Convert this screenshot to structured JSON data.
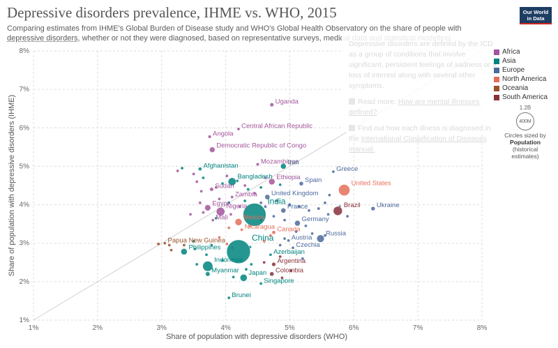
{
  "header": {
    "title": "Depressive disorders prevalence, IHME vs. WHO, 2015",
    "subtitle_before": "Comparing estimates from IHME's Global Burden of Disease study and WHO's Global Health Observatory on the share of people with ",
    "subtitle_link": "depressive disorders",
    "subtitle_after": ", whether or not they were diagnosed, based on representative surveys, medical data and statistical modelling.",
    "logo_line1": "Our World",
    "logo_line2": "in Data"
  },
  "tooltip": {
    "text": "Depressive disorders are defined by the ICD as a group of conditions that involve significant, persistent feelings of sadness or a loss of interest along with several other symptoms.",
    "read_more_label": "Read more: ",
    "read_more_link": "How are mental illnesses defined?",
    "find_out_text": "Find out how each illness is diagnosed in the ",
    "find_out_link": "International Classification of Diseases manual."
  },
  "legend": {
    "items": [
      {
        "label": "Africa",
        "color": "#a2559c"
      },
      {
        "label": "Asia",
        "color": "#00847e"
      },
      {
        "label": "Europe",
        "color": "#4c6a9c"
      },
      {
        "label": "North America",
        "color": "#e56e5a"
      },
      {
        "label": "Oceania",
        "color": "#9a5129"
      },
      {
        "label": "South America",
        "color": "#883039"
      }
    ],
    "size": {
      "top_label": "1.2B",
      "circle_label": "400M",
      "caption_line1": "Circles sized by",
      "caption_bold": "Population",
      "caption_line2": "(historical",
      "caption_line3": "estimates)"
    }
  },
  "chart_data": {
    "type": "scatter",
    "title": "Depressive disorders prevalence, IHME vs. WHO, 2015",
    "xlabel": "Share of population with depressive disorders (WHO)",
    "ylabel": "Share of population with depressive disorders (IHME)",
    "xlim": [
      1,
      8
    ],
    "ylim": [
      1,
      8
    ],
    "xticks": [
      "1%",
      "2%",
      "3%",
      "4%",
      "5%",
      "6%",
      "7%",
      "8%"
    ],
    "yticks": [
      "1%",
      "2%",
      "3%",
      "4%",
      "5%",
      "6%",
      "7%",
      "8%"
    ],
    "grid": true,
    "diagonal_reference": true,
    "legend_position": "right",
    "region_colors": {
      "Africa": "#a2559c",
      "Asia": "#00847e",
      "Europe": "#4c6a9c",
      "North America": "#e56e5a",
      "Oceania": "#9a5129",
      "South America": "#883039"
    },
    "labeled_points": [
      {
        "name": "Uganda",
        "region": "Africa",
        "x": 4.72,
        "y": 6.6,
        "pop_m": 40
      },
      {
        "name": "Central African Republic",
        "region": "Africa",
        "x": 4.2,
        "y": 5.97,
        "pop_m": 5
      },
      {
        "name": "Angola",
        "region": "Africa",
        "x": 3.75,
        "y": 5.77,
        "pop_m": 28
      },
      {
        "name": "Democratic Republic of Congo",
        "region": "Africa",
        "x": 3.79,
        "y": 5.43,
        "pop_m": 77
      },
      {
        "name": "Afghanistan",
        "region": "Asia",
        "x": 3.6,
        "y": 4.93,
        "pop_m": 34
      },
      {
        "name": "Mozambique",
        "region": "Africa",
        "x": 4.5,
        "y": 5.05,
        "pop_m": 28
      },
      {
        "name": "Iran",
        "region": "Asia",
        "x": 4.9,
        "y": 5.0,
        "pop_m": 79
      },
      {
        "name": "Greece",
        "region": "Europe",
        "x": 5.68,
        "y": 4.86,
        "pop_m": 11
      },
      {
        "name": "Bangladesh",
        "region": "Asia",
        "x": 4.1,
        "y": 4.6,
        "pop_m": 157
      },
      {
        "name": "Ethiopia",
        "region": "Africa",
        "x": 4.72,
        "y": 4.6,
        "pop_m": 100
      },
      {
        "name": "Spain",
        "region": "Europe",
        "x": 5.18,
        "y": 4.55,
        "pop_m": 46
      },
      {
        "name": "Sudan",
        "region": "Africa",
        "x": 3.78,
        "y": 4.4,
        "pop_m": 39
      },
      {
        "name": "United States",
        "region": "North America",
        "x": 5.85,
        "y": 4.38,
        "pop_m": 320
      },
      {
        "name": "Zambia",
        "region": "Africa",
        "x": 4.1,
        "y": 4.2,
        "pop_m": 16
      },
      {
        "name": "United Kingdom",
        "region": "Europe",
        "x": 4.65,
        "y": 4.2,
        "pop_m": 65
      },
      {
        "name": "Egypt",
        "region": "Africa",
        "x": 3.72,
        "y": 3.92,
        "pop_m": 93
      },
      {
        "name": "Nigeria",
        "region": "Africa",
        "x": 3.92,
        "y": 3.82,
        "pop_m": 182
      },
      {
        "name": "India",
        "region": "Asia",
        "x": 4.45,
        "y": 3.74,
        "pop_m": 1310
      },
      {
        "name": "France",
        "region": "Europe",
        "x": 4.9,
        "y": 3.85,
        "pop_m": 64
      },
      {
        "name": "Brazil",
        "region": "South America",
        "x": 5.75,
        "y": 3.84,
        "pop_m": 205
      },
      {
        "name": "Ukraine",
        "region": "Europe",
        "x": 6.3,
        "y": 3.9,
        "pop_m": 45
      },
      {
        "name": "Mali",
        "region": "Africa",
        "x": 3.8,
        "y": 3.6,
        "pop_m": 18
      },
      {
        "name": "Mexico",
        "region": "North America",
        "x": 4.2,
        "y": 3.55,
        "pop_m": 125
      },
      {
        "name": "Germany",
        "region": "Europe",
        "x": 5.12,
        "y": 3.52,
        "pop_m": 81
      },
      {
        "name": "Nicaragua",
        "region": "North America",
        "x": 4.25,
        "y": 3.35,
        "pop_m": 6
      },
      {
        "name": "Canada",
        "region": "North America",
        "x": 4.75,
        "y": 3.28,
        "pop_m": 36
      },
      {
        "name": "Russia",
        "region": "Europe",
        "x": 5.48,
        "y": 3.12,
        "pop_m": 144
      },
      {
        "name": "Papua New Guinea",
        "region": "Oceania",
        "x": 3.05,
        "y": 3.0,
        "pop_m": 8
      },
      {
        "name": "Austria",
        "region": "Europe",
        "x": 4.98,
        "y": 3.07,
        "pop_m": 9
      },
      {
        "name": "China",
        "region": "Asia",
        "x": 4.2,
        "y": 2.78,
        "pop_m": 1400
      },
      {
        "name": "Czechia",
        "region": "Europe",
        "x": 5.05,
        "y": 2.88,
        "pop_m": 11
      },
      {
        "name": "Philippines",
        "region": "Asia",
        "x": 3.35,
        "y": 2.78,
        "pop_m": 102
      },
      {
        "name": "Azerbaijan",
        "region": "Asia",
        "x": 4.7,
        "y": 2.7,
        "pop_m": 10
      },
      {
        "name": "Indonesia",
        "region": "Asia",
        "x": 3.72,
        "y": 2.4,
        "pop_m": 258
      },
      {
        "name": "Argentina",
        "region": "South America",
        "x": 4.75,
        "y": 2.45,
        "pop_m": 43
      },
      {
        "name": "Myanmar",
        "region": "Asia",
        "x": 3.72,
        "y": 2.2,
        "pop_m": 53
      },
      {
        "name": "Japan",
        "region": "Asia",
        "x": 4.28,
        "y": 2.1,
        "pop_m": 127
      },
      {
        "name": "Colombia",
        "region": "South America",
        "x": 4.72,
        "y": 2.2,
        "pop_m": 48
      },
      {
        "name": "Singapore",
        "region": "Asia",
        "x": 4.55,
        "y": 1.95,
        "pop_m": 5.5
      },
      {
        "name": "Brunei",
        "region": "Asia",
        "x": 4.05,
        "y": 1.58,
        "pop_m": 0.4
      }
    ],
    "unlabeled_points": [
      {
        "region": "Africa",
        "x": 3.25,
        "y": 4.88
      },
      {
        "region": "Asia",
        "x": 3.32,
        "y": 4.95
      },
      {
        "region": "Africa",
        "x": 3.5,
        "y": 4.8
      },
      {
        "region": "Africa",
        "x": 3.55,
        "y": 4.6
      },
      {
        "region": "Asia",
        "x": 3.65,
        "y": 4.7
      },
      {
        "region": "Africa",
        "x": 3.62,
        "y": 4.35
      },
      {
        "region": "Africa",
        "x": 3.85,
        "y": 4.45
      },
      {
        "region": "Asia",
        "x": 3.95,
        "y": 4.55
      },
      {
        "region": "Africa",
        "x": 4.02,
        "y": 4.75
      },
      {
        "region": "Asia",
        "x": 4.18,
        "y": 4.62
      },
      {
        "region": "Africa",
        "x": 4.3,
        "y": 4.5
      },
      {
        "region": "Asia",
        "x": 4.35,
        "y": 4.4
      },
      {
        "region": "Africa",
        "x": 4.45,
        "y": 4.3
      },
      {
        "region": "Asia",
        "x": 4.55,
        "y": 4.45
      },
      {
        "region": "Africa",
        "x": 4.62,
        "y": 4.7
      },
      {
        "region": "Asia",
        "x": 4.85,
        "y": 4.52
      },
      {
        "region": "Africa",
        "x": 3.6,
        "y": 4.05
      },
      {
        "region": "Africa",
        "x": 3.9,
        "y": 4.15
      },
      {
        "region": "Asia",
        "x": 4.05,
        "y": 4.05
      },
      {
        "region": "Africa",
        "x": 4.22,
        "y": 3.95
      },
      {
        "region": "Asia",
        "x": 4.3,
        "y": 4.1
      },
      {
        "region": "Europe",
        "x": 4.55,
        "y": 4.05
      },
      {
        "region": "Europe",
        "x": 4.62,
        "y": 3.95
      },
      {
        "region": "Europe",
        "x": 4.8,
        "y": 4.1
      },
      {
        "region": "Europe",
        "x": 5.0,
        "y": 4.0
      },
      {
        "region": "Europe",
        "x": 5.15,
        "y": 3.95
      },
      {
        "region": "Europe",
        "x": 5.3,
        "y": 3.85
      },
      {
        "region": "Europe",
        "x": 5.45,
        "y": 3.9
      },
      {
        "region": "Europe",
        "x": 5.55,
        "y": 4.05
      },
      {
        "region": "Europe",
        "x": 5.6,
        "y": 3.75
      },
      {
        "region": "Europe",
        "x": 5.78,
        "y": 3.95
      },
      {
        "region": "Europe",
        "x": 5.9,
        "y": 3.7
      },
      {
        "region": "Europe",
        "x": 5.62,
        "y": 4.25
      },
      {
        "region": "Africa",
        "x": 3.45,
        "y": 3.75
      },
      {
        "region": "Africa",
        "x": 3.65,
        "y": 3.8
      },
      {
        "region": "Asia",
        "x": 3.85,
        "y": 3.65
      },
      {
        "region": "Africa",
        "x": 4.08,
        "y": 3.75
      },
      {
        "region": "North America",
        "x": 4.05,
        "y": 3.4
      },
      {
        "region": "North America",
        "x": 4.38,
        "y": 3.45
      },
      {
        "region": "Asia",
        "x": 4.55,
        "y": 3.6
      },
      {
        "region": "Europe",
        "x": 4.75,
        "y": 3.7
      },
      {
        "region": "Europe",
        "x": 4.92,
        "y": 3.6
      },
      {
        "region": "Europe",
        "x": 5.1,
        "y": 3.3
      },
      {
        "region": "Europe",
        "x": 5.25,
        "y": 3.45
      },
      {
        "region": "Europe",
        "x": 5.35,
        "y": 3.25
      },
      {
        "region": "Oceania",
        "x": 2.95,
        "y": 2.98
      },
      {
        "region": "Oceania",
        "x": 3.12,
        "y": 2.95
      },
      {
        "region": "Oceania",
        "x": 3.15,
        "y": 2.82
      },
      {
        "region": "Oceania",
        "x": 3.35,
        "y": 2.95
      },
      {
        "region": "Asia",
        "x": 3.5,
        "y": 3.05
      },
      {
        "region": "Asia",
        "x": 3.52,
        "y": 2.85
      },
      {
        "region": "Asia",
        "x": 3.7,
        "y": 2.7
      },
      {
        "region": "Asia",
        "x": 3.78,
        "y": 2.95
      },
      {
        "region": "North America",
        "x": 3.9,
        "y": 3.15
      },
      {
        "region": "North America",
        "x": 4.02,
        "y": 2.98
      },
      {
        "region": "North America",
        "x": 4.1,
        "y": 2.88
      },
      {
        "region": "Asia",
        "x": 4.38,
        "y": 2.9
      },
      {
        "region": "North America",
        "x": 4.6,
        "y": 3.05
      },
      {
        "region": "North America",
        "x": 4.7,
        "y": 3.2
      },
      {
        "region": "Europe",
        "x": 4.85,
        "y": 2.95
      },
      {
        "region": "Europe",
        "x": 4.92,
        "y": 3.12
      },
      {
        "region": "South America",
        "x": 4.85,
        "y": 2.65
      },
      {
        "region": "South America",
        "x": 4.6,
        "y": 2.5
      },
      {
        "region": "Asia",
        "x": 4.4,
        "y": 2.45
      },
      {
        "region": "Asia",
        "x": 3.95,
        "y": 2.55
      },
      {
        "region": "Asia",
        "x": 3.55,
        "y": 2.45
      },
      {
        "region": "South America",
        "x": 5.02,
        "y": 2.28
      },
      {
        "region": "South America",
        "x": 4.88,
        "y": 2.1
      },
      {
        "region": "Asia",
        "x": 4.12,
        "y": 2.12
      },
      {
        "region": "Asia",
        "x": 4.32,
        "y": 2.32
      },
      {
        "region": "Europe",
        "x": 5.2,
        "y": 2.6
      },
      {
        "region": "Europe",
        "x": 5.55,
        "y": 3.2
      }
    ]
  }
}
